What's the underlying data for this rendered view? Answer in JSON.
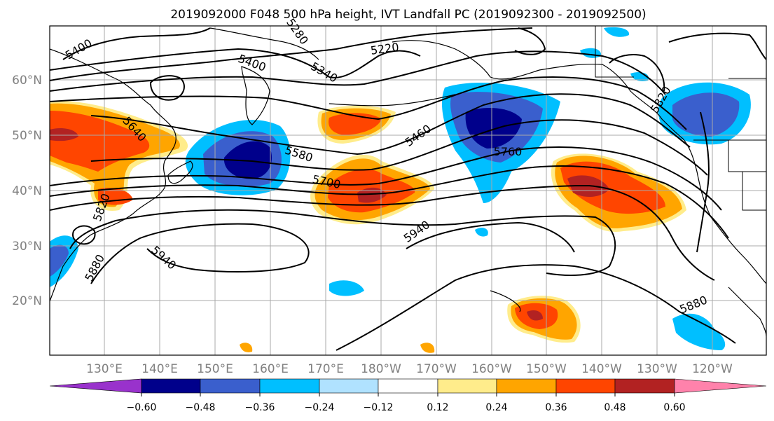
{
  "title": "2019092000 F048 500 hPa height, IVT Landfall PC (2019092300 - 2019092500)",
  "map": {
    "lat_labels": [
      "60°N",
      "50°N",
      "40°N",
      "30°N",
      "20°N"
    ],
    "lon_labels": [
      "130°E",
      "140°E",
      "150°E",
      "160°E",
      "170°E",
      "180°W",
      "170°W",
      "160°W",
      "150°W",
      "140°W",
      "130°W",
      "120°W"
    ],
    "contour_labels": [
      "5400",
      "5400",
      "5220",
      "5340",
      "5640",
      "5580",
      "5460",
      "5700",
      "5760",
      "5820",
      "5820",
      "5940",
      "5940",
      "5880",
      "5880",
      "5280"
    ]
  },
  "colorbar": {
    "tick_labels": [
      "−0.60",
      "−0.48",
      "−0.36",
      "−0.24",
      "−0.12",
      "0.12",
      "0.24",
      "0.36",
      "0.48",
      "0.60"
    ],
    "colors": [
      "#9932cc",
      "#00008b",
      "#3a5fcd",
      "#00bfff",
      "#b0e2ff",
      "#ffffff",
      "#ffec8b",
      "#ffa500",
      "#ff4500",
      "#b22222",
      "#ff82ab"
    ]
  }
}
